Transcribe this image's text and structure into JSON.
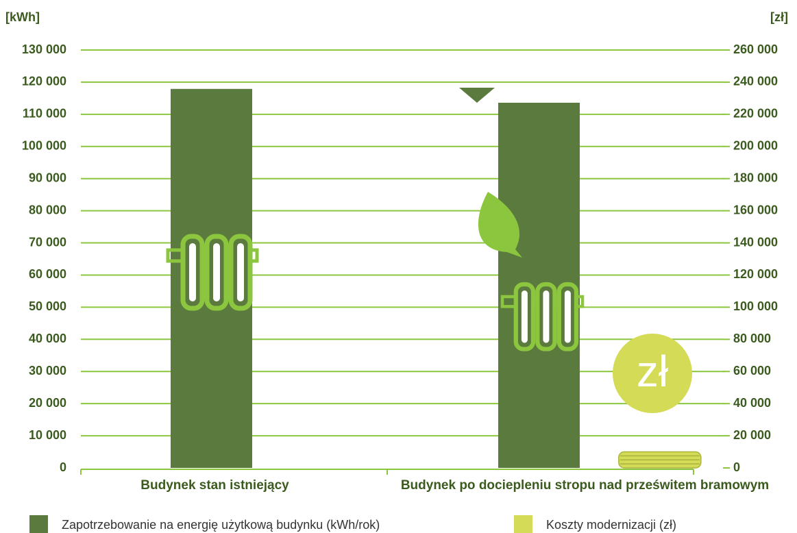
{
  "chart_data": {
    "type": "bar",
    "ylabel": "[kWh]",
    "y2label": "[zł]",
    "categories": [
      "Budynek stan istniejący",
      "Budynek po dociepleniu stropu nad prześwitem bramowym"
    ],
    "series": [
      {
        "name": "Zapotrzebowanie na energię użytkową budynku (kWh/rok)",
        "color": "#5b7a3e",
        "values": [
          117900,
          113600
        ]
      },
      {
        "name": "Koszty modernizacji (zł)",
        "color": "#d4dc57",
        "axis": "y2",
        "values": [
          null,
          10000
        ]
      }
    ],
    "ylim": [
      0,
      130000
    ],
    "yticks": [
      0,
      {
        "value": 10000,
        "label": "10 000"
      },
      {
        "value": 20000,
        "label": "20 000"
      },
      {
        "value": 30000,
        "label": "30 000"
      },
      {
        "value": 40000,
        "label": "40 000"
      },
      {
        "value": 50000,
        "label": "50 000"
      },
      {
        "value": 60000,
        "label": "60 000"
      },
      {
        "value": 70000,
        "label": "70 000"
      },
      {
        "value": 80000,
        "label": "80 000"
      },
      {
        "value": 90000,
        "label": "90 000"
      },
      {
        "value": 100000,
        "label": "100 000"
      },
      {
        "value": 110000,
        "label": "110 000"
      },
      {
        "value": 120000,
        "label": "120 000"
      },
      {
        "value": 130000,
        "label": "130 000"
      }
    ],
    "y2lim": [
      0,
      260000
    ],
    "y2ticks": [
      0,
      {
        "value": 20000,
        "label": "20 000"
      },
      {
        "value": 40000,
        "label": "40 000"
      },
      {
        "value": 60000,
        "label": "60 000"
      },
      {
        "value": 80000,
        "label": "80 000"
      },
      {
        "value": 100000,
        "label": "100 000"
      },
      {
        "value": 120000,
        "label": "120 000"
      },
      {
        "value": 140000,
        "label": "140 000"
      },
      {
        "value": 160000,
        "label": "160 000"
      },
      {
        "value": 180000,
        "label": "180 000"
      },
      {
        "value": 200000,
        "label": "200 000"
      },
      {
        "value": 220000,
        "label": "220 000"
      },
      {
        "value": 240000,
        "label": "240 000"
      },
      {
        "value": 260000,
        "label": "260 000"
      }
    ],
    "grid": true,
    "grid_color": "#8cc63f",
    "annotations": [
      "zł"
    ]
  }
}
